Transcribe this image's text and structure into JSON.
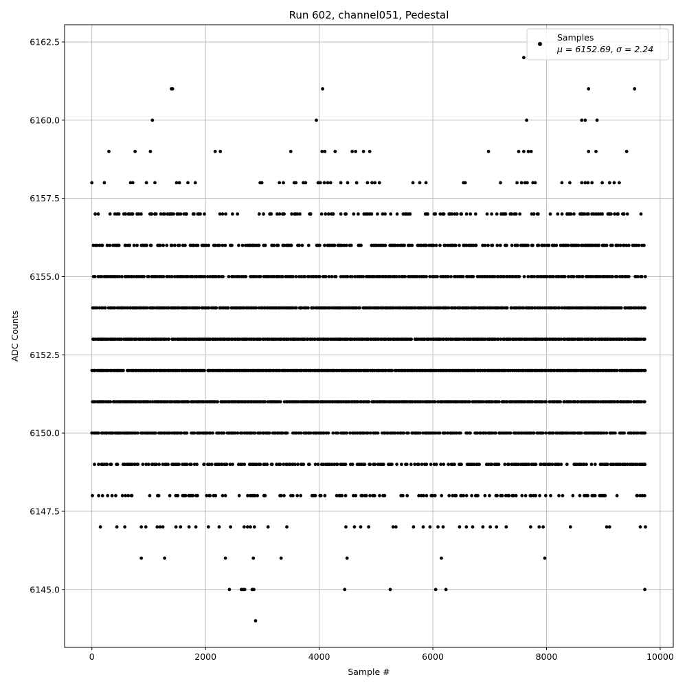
{
  "chart_data": {
    "type": "scatter",
    "title": "Run 602, channel051, Pedestal",
    "xlabel": "Sample #",
    "ylabel": "ADC Counts",
    "xlim": [
      -480,
      10230
    ],
    "ylim": [
      6143.15,
      6163.05
    ],
    "xticks": [
      0,
      2000,
      4000,
      6000,
      8000,
      10000
    ],
    "xtick_labels": [
      "0",
      "2000",
      "4000",
      "6000",
      "8000",
      "10000"
    ],
    "yticks": [
      6145.0,
      6147.5,
      6150.0,
      6152.5,
      6155.0,
      6157.5,
      6160.0,
      6162.5
    ],
    "ytick_labels": [
      "6145.0",
      "6147.5",
      "6150.0",
      "6152.5",
      "6155.0",
      "6157.5",
      "6160.0",
      "6162.5"
    ],
    "grid": true,
    "legend": {
      "placement": "top-right",
      "entries": [
        {
          "name": "Samples",
          "stats": "μ = 6152.69, σ = 2.24",
          "mu": 6152.69,
          "sigma": 2.24
        }
      ]
    },
    "marker_color": "#000000",
    "series": [
      {
        "name": "Samples",
        "points": [
          [
            0,
            6158
          ],
          [
            220,
            6158
          ],
          [
            300,
            6159
          ],
          [
            760,
            6159
          ],
          [
            1030,
            6159
          ],
          [
            2170,
            6159
          ],
          [
            2260,
            6159
          ],
          [
            3500,
            6159
          ],
          [
            4050,
            6159
          ],
          [
            4100,
            6159
          ],
          [
            4280,
            6159
          ],
          [
            4580,
            6159
          ],
          [
            4640,
            6159
          ],
          [
            4780,
            6159
          ],
          [
            4890,
            6159
          ],
          [
            6980,
            6159
          ],
          [
            7510,
            6159
          ],
          [
            7600,
            6159
          ],
          [
            7680,
            6159
          ],
          [
            7730,
            6159
          ],
          [
            8740,
            6159
          ],
          [
            8870,
            6159
          ],
          [
            9410,
            6159
          ],
          [
            680,
            6158
          ],
          [
            720,
            6158
          ],
          [
            960,
            6158
          ],
          [
            1110,
            6158
          ],
          [
            1490,
            6158
          ],
          [
            1540,
            6158
          ],
          [
            1690,
            6158
          ],
          [
            1820,
            6158
          ],
          [
            2960,
            6158
          ],
          [
            2990,
            6158
          ],
          [
            3300,
            6158
          ],
          [
            3370,
            6158
          ],
          [
            3560,
            6158
          ],
          [
            3590,
            6158
          ],
          [
            3720,
            6158
          ],
          [
            3760,
            6158
          ],
          [
            3980,
            6158
          ],
          [
            4020,
            6158
          ],
          [
            4090,
            6158
          ],
          [
            4150,
            6158
          ],
          [
            4200,
            6158
          ],
          [
            4380,
            6158
          ],
          [
            4500,
            6158
          ],
          [
            4660,
            6158
          ],
          [
            4850,
            6158
          ],
          [
            4930,
            6158
          ],
          [
            4980,
            6158
          ],
          [
            5060,
            6158
          ],
          [
            5650,
            6158
          ],
          [
            5770,
            6158
          ],
          [
            5880,
            6158
          ],
          [
            6540,
            6158
          ],
          [
            6570,
            6158
          ],
          [
            7190,
            6158
          ],
          [
            7480,
            6158
          ],
          [
            7560,
            6158
          ],
          [
            7620,
            6158
          ],
          [
            7660,
            6158
          ],
          [
            7760,
            6158
          ],
          [
            7800,
            6158
          ],
          [
            8270,
            6158
          ],
          [
            8410,
            6158
          ],
          [
            8620,
            6158
          ],
          [
            8680,
            6158
          ],
          [
            8730,
            6158
          ],
          [
            8800,
            6158
          ],
          [
            8980,
            6158
          ],
          [
            9110,
            6158
          ],
          [
            9190,
            6158
          ],
          [
            9280,
            6158
          ],
          [
            1065,
            6160
          ],
          [
            3950,
            6160
          ],
          [
            7650,
            6160
          ],
          [
            8620,
            6160
          ],
          [
            8680,
            6160
          ],
          [
            8890,
            6160
          ],
          [
            1400,
            6161
          ],
          [
            1420,
            6161
          ],
          [
            4060,
            6161
          ],
          [
            8740,
            6161
          ],
          [
            9550,
            6161
          ],
          [
            7600,
            6162
          ],
          [
            870,
            6146
          ],
          [
            1280,
            6146
          ],
          [
            2350,
            6146
          ],
          [
            2840,
            6146
          ],
          [
            3330,
            6146
          ],
          [
            4490,
            6146
          ],
          [
            6150,
            6146
          ],
          [
            7970,
            6146
          ],
          [
            2420,
            6145
          ],
          [
            2630,
            6145
          ],
          [
            2660,
            6145
          ],
          [
            2690,
            6145
          ],
          [
            2820,
            6145
          ],
          [
            2850,
            6145
          ],
          [
            4450,
            6145
          ],
          [
            5250,
            6145
          ],
          [
            6050,
            6145
          ],
          [
            6230,
            6145
          ],
          [
            9730,
            6145
          ],
          [
            2880,
            6144
          ],
          [
            150,
            6147
          ],
          [
            440,
            6147
          ],
          [
            580,
            6147
          ],
          [
            870,
            6147
          ],
          [
            950,
            6147
          ],
          [
            1150,
            6147
          ],
          [
            1200,
            6147
          ],
          [
            1250,
            6147
          ],
          [
            1480,
            6147
          ],
          [
            1560,
            6147
          ],
          [
            1710,
            6147
          ],
          [
            1830,
            6147
          ],
          [
            2050,
            6147
          ],
          [
            2240,
            6147
          ],
          [
            2440,
            6147
          ],
          [
            2680,
            6147
          ],
          [
            2740,
            6147
          ],
          [
            2790,
            6147
          ],
          [
            2860,
            6147
          ],
          [
            3100,
            6147
          ],
          [
            3430,
            6147
          ],
          [
            4470,
            6147
          ],
          [
            4620,
            6147
          ],
          [
            4730,
            6147
          ],
          [
            4870,
            6147
          ],
          [
            5300,
            6147
          ],
          [
            5350,
            6147
          ],
          [
            5660,
            6147
          ],
          [
            5830,
            6147
          ],
          [
            5950,
            6147
          ],
          [
            6090,
            6147
          ],
          [
            6180,
            6147
          ],
          [
            6470,
            6147
          ],
          [
            6590,
            6147
          ],
          [
            6700,
            6147
          ],
          [
            6880,
            6147
          ],
          [
            7010,
            6147
          ],
          [
            7120,
            6147
          ],
          [
            7290,
            6147
          ],
          [
            7720,
            6147
          ],
          [
            7870,
            6147
          ],
          [
            7940,
            6147
          ],
          [
            8420,
            6147
          ],
          [
            9060,
            6147
          ],
          [
            9110,
            6147
          ],
          [
            9650,
            6147
          ],
          [
            9740,
            6147
          ]
        ]
      }
    ]
  }
}
